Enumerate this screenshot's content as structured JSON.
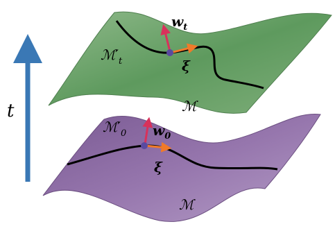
{
  "axis_label": "t",
  "top_surface": {
    "submanifold": {
      "text": "ℳ′",
      "sub": "t"
    },
    "normal": {
      "text": "w",
      "sub": "t"
    },
    "tangent": {
      "text": "ξ"
    },
    "manifold": {
      "text": "ℳ"
    }
  },
  "bottom_surface": {
    "submanifold": {
      "text": "ℳ′",
      "sub": "0"
    },
    "normal": {
      "text": "w",
      "sub": "0"
    },
    "tangent": {
      "text": "ξ"
    },
    "manifold": {
      "text": "ℳ"
    }
  }
}
